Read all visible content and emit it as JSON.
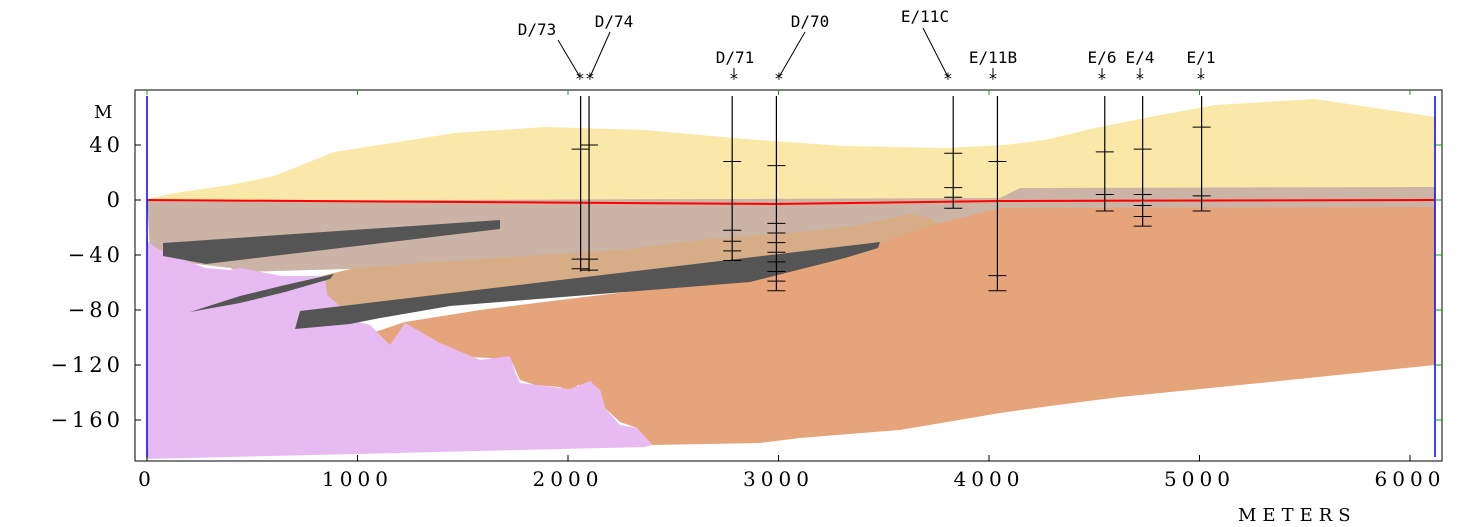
{
  "y_axis": {
    "unit_label": "M",
    "ticks": [
      {
        "value": 40,
        "label": "40"
      },
      {
        "value": 0,
        "label": "0"
      },
      {
        "value": -40,
        "label": "−40"
      },
      {
        "value": -80,
        "label": "−80"
      },
      {
        "value": -120,
        "label": "−120"
      },
      {
        "value": -160,
        "label": "−160"
      }
    ]
  },
  "x_axis": {
    "unit_label": "METERS",
    "ticks": [
      {
        "value": 0,
        "label": "0"
      },
      {
        "value": 1000,
        "label": "1000"
      },
      {
        "value": 2000,
        "label": "2000"
      },
      {
        "value": 3000,
        "label": "3000"
      },
      {
        "value": 4000,
        "label": "4000"
      },
      {
        "value": 5000,
        "label": "5000"
      },
      {
        "value": 6000,
        "label": "6000"
      }
    ]
  },
  "boreholes": [
    {
      "label": "D/73",
      "x": 2060,
      "top": 40,
      "bottom": -52,
      "ticks": [
        37,
        -43,
        -50
      ]
    },
    {
      "label": "D/74",
      "x": 2100,
      "top": 40,
      "bottom": -52,
      "ticks": [
        40,
        -43,
        -51
      ]
    },
    {
      "label": "D/71",
      "x": 2780,
      "top": 40,
      "bottom": -44,
      "ticks": [
        28,
        -22,
        -30,
        -37,
        -44
      ]
    },
    {
      "label": "D/70",
      "x": 2990,
      "top": 40,
      "bottom": -66,
      "ticks": [
        25,
        -17,
        -24,
        -31,
        -38,
        -45,
        -52,
        -59,
        -66
      ]
    },
    {
      "label": "E/11C",
      "x": 3830,
      "top": 40,
      "bottom": -6,
      "ticks": [
        34,
        9,
        2,
        -6
      ]
    },
    {
      "label": "E/11B",
      "x": 4040,
      "top": 40,
      "bottom": -66,
      "ticks": [
        28,
        -55,
        -66
      ]
    },
    {
      "label": "E/6",
      "x": 4550,
      "top": 40,
      "bottom": -8,
      "ticks": [
        35,
        4,
        -8
      ]
    },
    {
      "label": "E/4",
      "x": 4730,
      "top": 40,
      "bottom": -19,
      "ticks": [
        37,
        4,
        -4,
        -12,
        -19
      ]
    },
    {
      "label": "E/1",
      "x": 5010,
      "top": 40,
      "bottom": -8,
      "ticks": [
        53,
        3,
        -8
      ]
    }
  ],
  "colors": {
    "layer_top": "#f9e8a8",
    "layer_brown": "#cbb3a5",
    "layer_tan": "#d6ad86",
    "layer_orange": "#e6a47b",
    "layer_dark": "#555555",
    "layer_violet": "#e8baf2",
    "waterline": "#ff0000",
    "edge_line": "#0000ff",
    "tick_green": "#00aa00"
  }
}
